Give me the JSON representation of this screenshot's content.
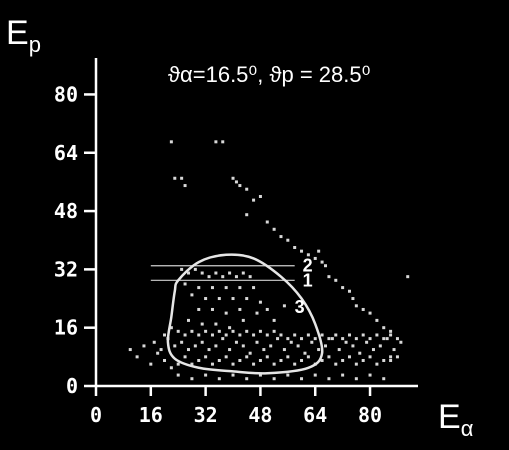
{
  "chart_data": {
    "type": "scatter",
    "xlabel": {
      "main": "E",
      "sub": "α"
    },
    "ylabel": {
      "main": "E",
      "sub": "p"
    },
    "annotation": "ϑα=16.5⁰, ϑp = 28.5⁰",
    "xlim": [
      0,
      94
    ],
    "ylim": [
      0,
      90
    ],
    "xticks": [
      "0",
      "16",
      "32",
      "48",
      "64",
      "80"
    ],
    "yticks": [
      "0",
      "16",
      "32",
      "48",
      "64",
      "80"
    ],
    "grid": false,
    "colors": {
      "background": "#000000",
      "points": "#d8d8d8",
      "axes": "#ffffff"
    },
    "bands": [
      {
        "label": "2",
        "y": 33,
        "x_range": [
          16,
          58
        ]
      },
      {
        "label": "1",
        "y": 29,
        "x_range": [
          16,
          58
        ]
      }
    ],
    "contour_label": "3",
    "contour": [
      [
        24,
        29
      ],
      [
        30,
        34
      ],
      [
        38,
        36
      ],
      [
        46,
        35
      ],
      [
        54,
        30
      ],
      [
        60,
        24
      ],
      [
        64,
        17
      ],
      [
        66,
        9
      ],
      [
        62,
        5
      ],
      [
        50,
        3.5
      ],
      [
        40,
        4
      ],
      [
        30,
        5
      ],
      [
        23,
        7.5
      ],
      [
        21,
        12
      ],
      [
        22,
        19
      ],
      [
        23,
        26
      ],
      [
        24,
        29
      ]
    ],
    "series": [
      {
        "name": "",
        "points": [
          [
            22,
            67
          ],
          [
            35,
            67
          ],
          [
            37,
            67
          ],
          [
            23,
            57
          ],
          [
            25,
            57
          ],
          [
            26,
            55
          ],
          [
            40,
            57
          ],
          [
            41,
            56
          ],
          [
            42,
            55
          ],
          [
            44,
            54
          ],
          [
            46,
            51
          ],
          [
            48,
            52
          ],
          [
            44,
            47
          ],
          [
            50,
            45
          ],
          [
            52,
            43
          ],
          [
            54,
            41
          ],
          [
            56,
            40
          ],
          [
            58,
            38
          ],
          [
            60,
            37
          ],
          [
            62,
            36
          ],
          [
            64,
            35
          ],
          [
            66,
            34
          ],
          [
            67,
            33
          ],
          [
            68,
            30
          ],
          [
            70,
            29
          ],
          [
            72,
            27
          ],
          [
            74,
            26
          ],
          [
            75,
            24
          ],
          [
            76,
            22
          ],
          [
            78,
            21
          ],
          [
            80,
            20
          ],
          [
            82,
            18
          ],
          [
            84,
            16
          ],
          [
            86,
            15
          ],
          [
            65,
            37
          ],
          [
            91,
            30
          ],
          [
            86,
            14
          ],
          [
            88,
            13
          ],
          [
            25,
            32
          ],
          [
            27,
            31
          ],
          [
            29,
            32
          ],
          [
            31,
            31
          ],
          [
            33,
            30
          ],
          [
            35,
            31
          ],
          [
            37,
            30
          ],
          [
            39,
            31
          ],
          [
            41,
            30
          ],
          [
            43,
            31
          ],
          [
            45,
            30
          ],
          [
            26,
            28
          ],
          [
            30,
            27
          ],
          [
            34,
            27
          ],
          [
            38,
            27
          ],
          [
            42,
            27
          ],
          [
            46,
            27
          ],
          [
            28,
            25
          ],
          [
            32,
            24
          ],
          [
            36,
            24
          ],
          [
            40,
            24
          ],
          [
            44,
            24
          ],
          [
            48,
            23
          ],
          [
            30,
            21
          ],
          [
            34,
            21
          ],
          [
            38,
            20
          ],
          [
            42,
            21
          ],
          [
            27,
            18
          ],
          [
            31,
            17
          ],
          [
            35,
            17
          ],
          [
            39,
            16
          ],
          [
            43,
            18
          ],
          [
            47,
            20
          ],
          [
            50,
            21
          ],
          [
            52,
            18
          ],
          [
            55,
            22
          ],
          [
            17,
            12
          ],
          [
            19,
            10
          ],
          [
            21,
            13
          ],
          [
            23,
            11
          ],
          [
            25,
            12
          ],
          [
            27,
            10
          ],
          [
            29,
            11
          ],
          [
            31,
            12
          ],
          [
            33,
            10
          ],
          [
            35,
            11
          ],
          [
            37,
            13
          ],
          [
            39,
            10
          ],
          [
            41,
            12
          ],
          [
            43,
            11
          ],
          [
            45,
            9
          ],
          [
            47,
            12
          ],
          [
            49,
            10
          ],
          [
            51,
            11
          ],
          [
            53,
            13
          ],
          [
            55,
            10
          ],
          [
            57,
            12
          ],
          [
            59,
            11
          ],
          [
            61,
            9
          ],
          [
            63,
            12
          ],
          [
            65,
            10
          ],
          [
            67,
            11
          ],
          [
            69,
            13
          ],
          [
            71,
            10
          ],
          [
            73,
            12
          ],
          [
            75,
            11
          ],
          [
            77,
            9
          ],
          [
            79,
            12
          ],
          [
            81,
            10
          ],
          [
            83,
            11
          ],
          [
            85,
            13
          ],
          [
            87,
            10
          ],
          [
            89,
            12
          ],
          [
            88,
            8
          ],
          [
            86,
            7
          ],
          [
            20,
            7
          ],
          [
            22,
            5
          ],
          [
            24,
            6
          ],
          [
            26,
            8
          ],
          [
            28,
            6
          ],
          [
            30,
            7
          ],
          [
            32,
            8
          ],
          [
            34,
            6
          ],
          [
            36,
            7
          ],
          [
            38,
            8
          ],
          [
            40,
            6
          ],
          [
            42,
            7
          ],
          [
            44,
            8
          ],
          [
            46,
            6
          ],
          [
            48,
            7
          ],
          [
            50,
            8
          ],
          [
            52,
            6
          ],
          [
            54,
            7
          ],
          [
            56,
            8
          ],
          [
            58,
            6
          ],
          [
            60,
            7
          ],
          [
            62,
            8
          ],
          [
            64,
            6
          ],
          [
            66,
            7
          ],
          [
            68,
            8
          ],
          [
            70,
            6
          ],
          [
            72,
            7
          ],
          [
            74,
            8
          ],
          [
            76,
            6
          ],
          [
            78,
            7
          ],
          [
            80,
            8
          ],
          [
            82,
            6
          ],
          [
            84,
            7
          ],
          [
            86,
            8
          ],
          [
            10,
            10
          ],
          [
            12,
            8
          ],
          [
            14,
            11
          ],
          [
            16,
            6
          ],
          [
            18,
            9
          ],
          [
            20,
            14
          ],
          [
            22,
            16
          ],
          [
            24,
            15
          ],
          [
            26,
            14
          ],
          [
            28,
            15
          ],
          [
            30,
            14
          ],
          [
            32,
            15
          ],
          [
            34,
            14
          ],
          [
            36,
            15
          ],
          [
            38,
            14
          ],
          [
            40,
            15
          ],
          [
            42,
            14
          ],
          [
            44,
            15
          ],
          [
            46,
            14
          ],
          [
            48,
            15
          ],
          [
            50,
            14
          ],
          [
            52,
            15
          ],
          [
            54,
            14
          ],
          [
            56,
            13
          ],
          [
            58,
            14
          ],
          [
            60,
            13
          ],
          [
            62,
            14
          ],
          [
            64,
            13
          ],
          [
            66,
            14
          ],
          [
            68,
            13
          ],
          [
            70,
            14
          ],
          [
            72,
            13
          ],
          [
            74,
            14
          ],
          [
            76,
            13
          ],
          [
            78,
            14
          ],
          [
            80,
            13
          ],
          [
            82,
            14
          ],
          [
            84,
            13
          ],
          [
            24,
            3
          ],
          [
            28,
            2
          ],
          [
            32,
            3
          ],
          [
            36,
            2
          ],
          [
            40,
            3
          ],
          [
            44,
            2
          ],
          [
            48,
            3
          ],
          [
            52,
            2
          ],
          [
            56,
            3
          ],
          [
            60,
            2
          ],
          [
            64,
            3
          ],
          [
            68,
            2
          ],
          [
            72,
            3
          ],
          [
            76,
            2
          ],
          [
            80,
            3
          ],
          [
            84,
            2
          ]
        ]
      }
    ]
  }
}
